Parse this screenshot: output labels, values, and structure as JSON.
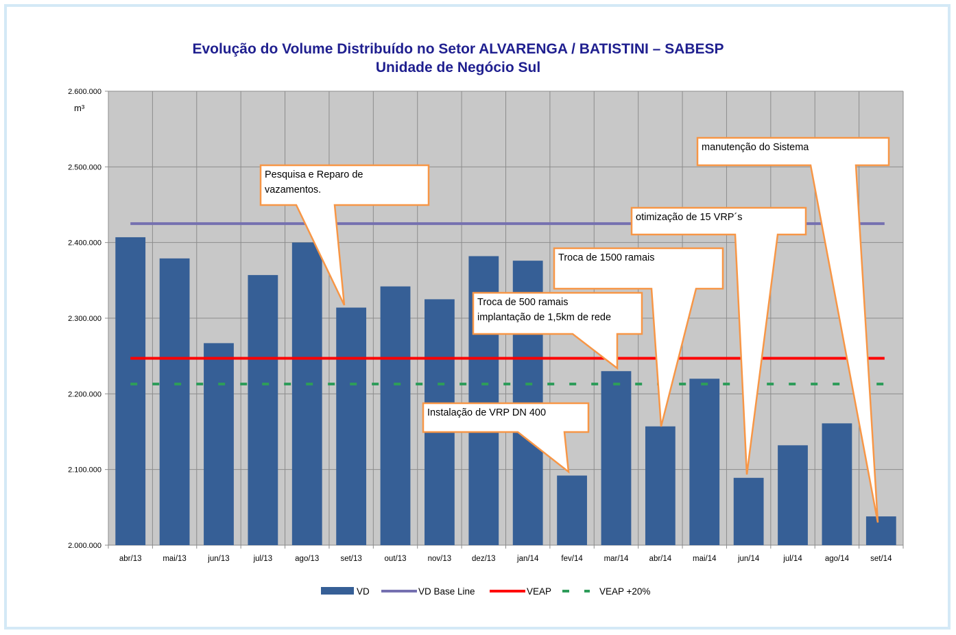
{
  "title_line1": "Evolução do Volume Distribuído no Setor ALVARENGA / BATISTINI – SABESP",
  "title_line2": "Unidade de Negócio Sul",
  "chart_data": {
    "type": "bar",
    "title": "Evolução do Volume Distribuído no Setor ALVARENGA / BATISTINI – SABESP",
    "subtitle": "Unidade de Negócio Sul",
    "ylabel": "m³",
    "xlabel": "",
    "ylim": [
      2000000,
      2600000
    ],
    "yticks": [
      2000000,
      2100000,
      2200000,
      2300000,
      2400000,
      2500000,
      2600000
    ],
    "ytick_labels": [
      "2.000.000",
      "2.100.000",
      "2.200.000",
      "2.300.000",
      "2.400.000",
      "2.500.000",
      "2.600.000"
    ],
    "grid": true,
    "legend_position": "bottom",
    "categories": [
      "abr/13",
      "mai/13",
      "jun/13",
      "jul/13",
      "ago/13",
      "set/13",
      "out/13",
      "nov/13",
      "dez/13",
      "jan/14",
      "fev/14",
      "mar/14",
      "abr/14",
      "mai/14",
      "jun/14",
      "jul/14",
      "ago/14",
      "set/14"
    ],
    "series": [
      {
        "name": "VD",
        "kind": "bar",
        "color": "#365f96",
        "values": [
          2407000,
          2379000,
          2267000,
          2357000,
          2400000,
          2314000,
          2342000,
          2325000,
          2382000,
          2376000,
          2092000,
          2230000,
          2157000,
          2220000,
          2089000,
          2132000,
          2161000,
          2038000
        ]
      },
      {
        "name": "VD Base Line",
        "kind": "line",
        "color": "#7570b0",
        "constant": 2425000
      },
      {
        "name": "VEAP",
        "kind": "line",
        "color": "#ff0000",
        "constant": 2247000
      },
      {
        "name": "VEAP +20%",
        "kind": "dashed-line",
        "color": "#2e9c5a",
        "constant": 2213000
      }
    ],
    "annotations": [
      {
        "lines": [
          "Pesquisa e Reparo de",
          "vazamentos."
        ],
        "target_category": "set/13"
      },
      {
        "lines": [
          "manutenção do Sistema"
        ],
        "target_category": "set/14"
      },
      {
        "lines": [
          "otimização de 15 VRP´s"
        ],
        "target_category": "jun/14"
      },
      {
        "lines": [
          "Troca de 1500 ramais"
        ],
        "target_category": "abr/14"
      },
      {
        "lines": [
          "Troca de 500 ramais",
          "implantação de 1,5km de rede"
        ],
        "target_category": "mar/14"
      },
      {
        "lines": [
          "Instalação de VRP DN 400"
        ],
        "target_category": "fev/14"
      }
    ]
  }
}
